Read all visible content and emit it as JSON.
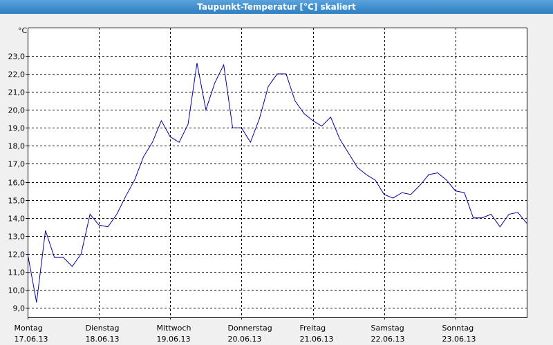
{
  "chart_data": {
    "type": "line",
    "title": "Taupunkt-Temperatur [°C] skaliert",
    "y_unit": "°C",
    "x": [
      0,
      3,
      6,
      9,
      12,
      15,
      18,
      21,
      24,
      27,
      30,
      33,
      36,
      39,
      42,
      45,
      48,
      51,
      54,
      57,
      60,
      63,
      66,
      69,
      72,
      75,
      78,
      81,
      84,
      87,
      90,
      93,
      96,
      99,
      102,
      105,
      108,
      111,
      114,
      117,
      120,
      123,
      126,
      129,
      132,
      135,
      138,
      141,
      144,
      147,
      150,
      153,
      156,
      159,
      162,
      165,
      168
    ],
    "series": [
      {
        "color": "#0000a0",
        "values": [
          12.0,
          9.3,
          13.3,
          11.8,
          11.8,
          11.3,
          12.0,
          14.2,
          13.6,
          13.5,
          14.2,
          15.2,
          16.1,
          17.4,
          18.2,
          19.4,
          18.5,
          18.2,
          19.2,
          22.6,
          20.0,
          21.5,
          22.5,
          19.0,
          19.0,
          18.2,
          19.5,
          21.3,
          22.0,
          22.0,
          20.5,
          19.8,
          19.4,
          19.1,
          19.6,
          18.4,
          17.6,
          16.8,
          16.4,
          16.1,
          15.3,
          15.1,
          15.4,
          15.3,
          15.8,
          16.4,
          16.5,
          16.1,
          15.5,
          15.4,
          14.0,
          14.0,
          14.2,
          13.5,
          14.2,
          14.3,
          13.7
        ]
      }
    ],
    "xlim": [
      0,
      168
    ],
    "xticks": [
      {
        "value": 0,
        "label": "Montag",
        "date": "17.06.13"
      },
      {
        "value": 24,
        "label": "Dienstag",
        "date": "18.06.13"
      },
      {
        "value": 48,
        "label": "Mittwoch",
        "date": "19.06.13"
      },
      {
        "value": 72,
        "label": "Donnerstag",
        "date": "20.06.13"
      },
      {
        "value": 96,
        "label": "Freitag",
        "date": "21.06.13"
      },
      {
        "value": 120,
        "label": "Samstag",
        "date": "22.06.13"
      },
      {
        "value": 144,
        "label": "Sonntag",
        "date": "23.06.13"
      }
    ],
    "ylim": [
      8.47,
      24.57
    ],
    "yticks": [
      {
        "value": 9,
        "label": "9,0"
      },
      {
        "value": 10,
        "label": "10,0"
      },
      {
        "value": 11,
        "label": "11,0"
      },
      {
        "value": 12,
        "label": "12,0"
      },
      {
        "value": 13,
        "label": "13,0"
      },
      {
        "value": 14,
        "label": "14,0"
      },
      {
        "value": 15,
        "label": "15,0"
      },
      {
        "value": 16,
        "label": "16,0"
      },
      {
        "value": 17,
        "label": "17,0"
      },
      {
        "value": 18,
        "label": "18,0"
      },
      {
        "value": 19,
        "label": "19,0"
      },
      {
        "value": 20,
        "label": "20,0"
      },
      {
        "value": 21,
        "label": "21,0"
      },
      {
        "value": 22,
        "label": "22,0"
      },
      {
        "value": 23,
        "label": "23,0"
      }
    ],
    "grid": true
  }
}
